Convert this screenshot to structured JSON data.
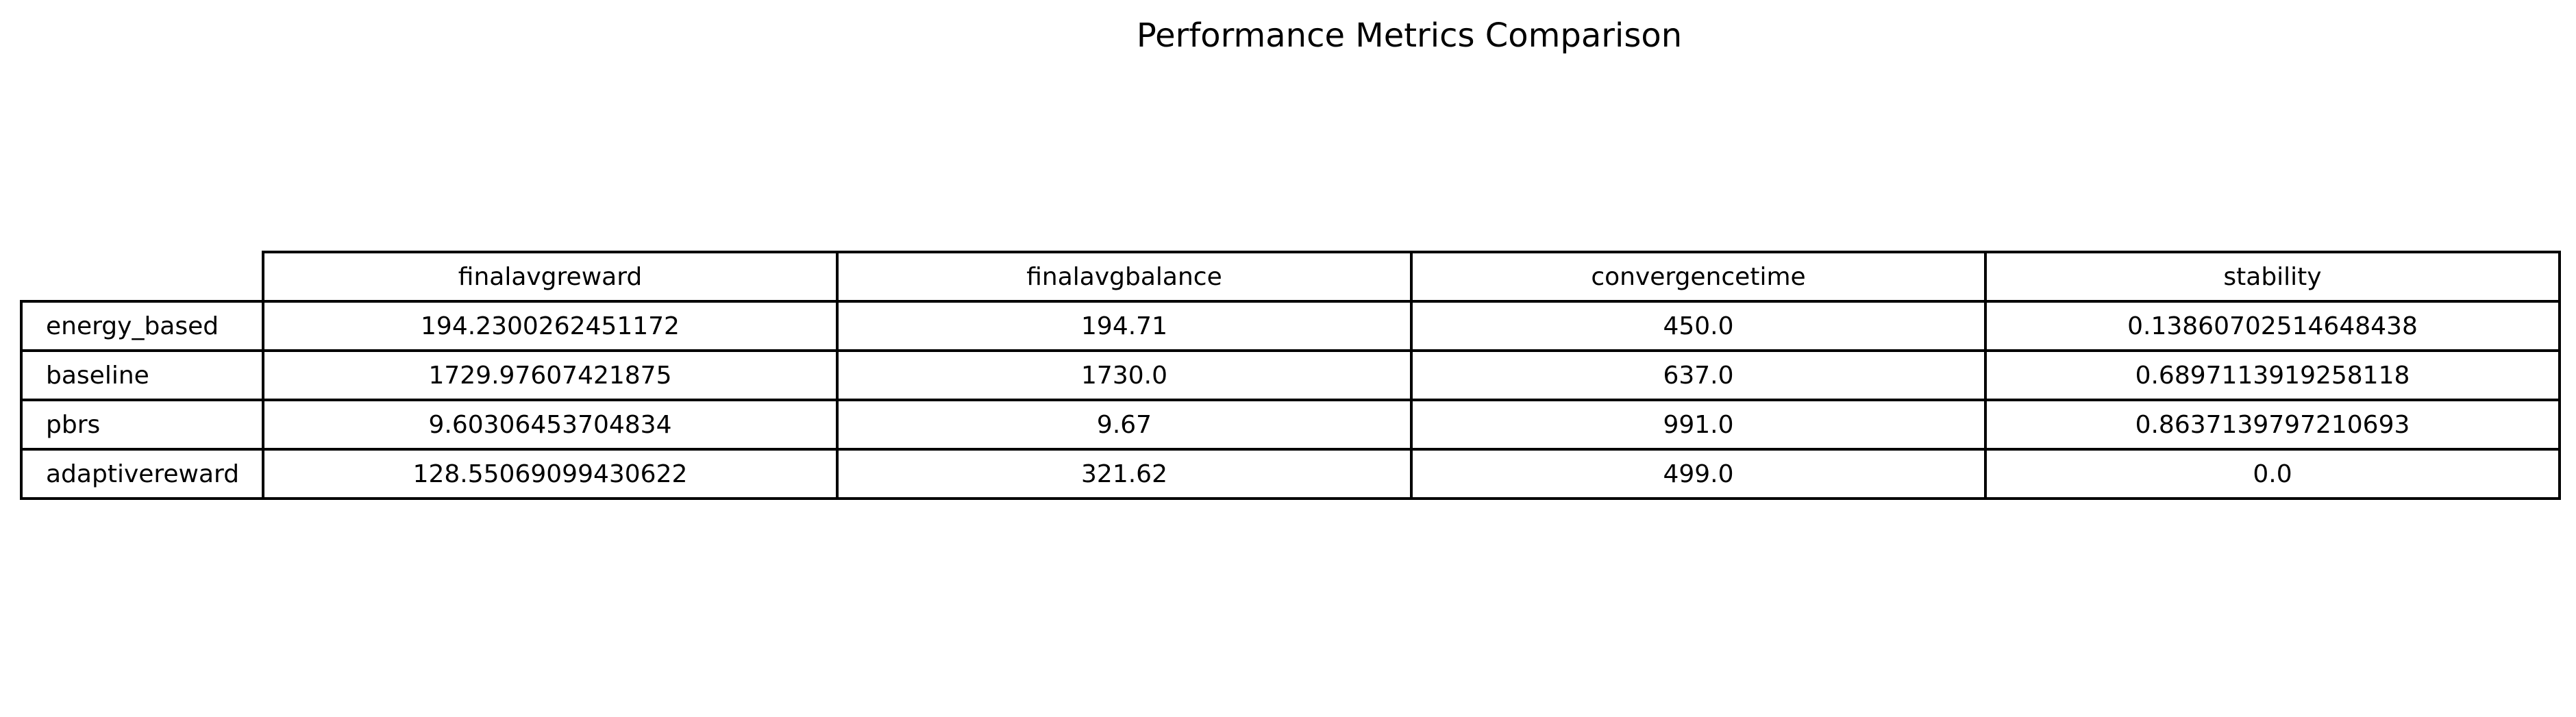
{
  "chart_data": {
    "type": "table",
    "title": "Performance Metrics Comparison",
    "columns": [
      "finalavgreward",
      "finalavgbalance",
      "convergencetime",
      "stability"
    ],
    "rows": [
      {
        "label": "energy_based",
        "values": [
          "194.2300262451172",
          "194.71",
          "450.0",
          "0.13860702514648438"
        ]
      },
      {
        "label": "baseline",
        "values": [
          "1729.97607421875",
          "1730.0",
          "637.0",
          "0.6897113919258118"
        ]
      },
      {
        "label": "pbrs",
        "values": [
          "9.60306453704834",
          "9.67",
          "991.0",
          "0.8637139797210693"
        ]
      },
      {
        "label": "adaptivereward",
        "values": [
          "128.55069099430622",
          "321.62",
          "499.0",
          "0.0"
        ]
      }
    ]
  }
}
